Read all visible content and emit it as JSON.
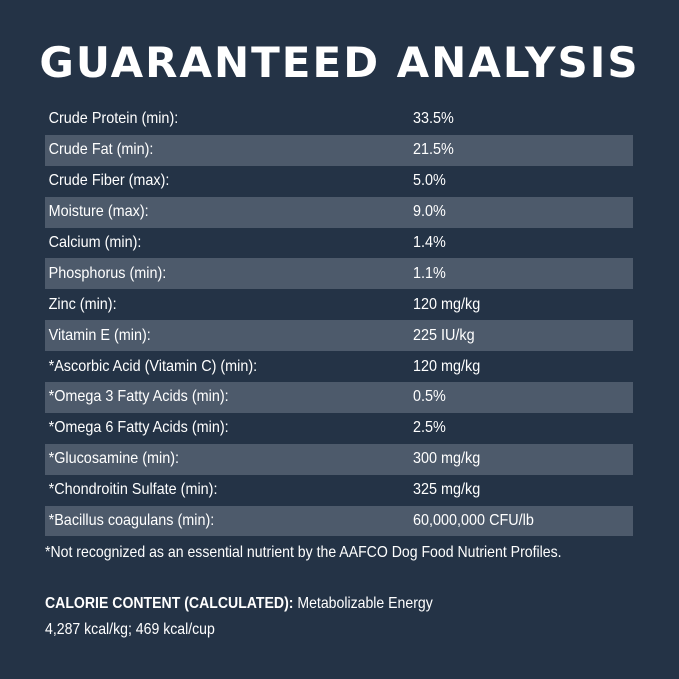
{
  "title": "GUARANTEED ANALYSIS",
  "rows": [
    {
      "label": "Crude Protein (min):",
      "value": "33.5%"
    },
    {
      "label": "Crude Fat (min):",
      "value": "21.5%"
    },
    {
      "label": "Crude Fiber (max):",
      "value": "5.0%"
    },
    {
      "label": "Moisture (max):",
      "value": "9.0%"
    },
    {
      "label": "Calcium (min):",
      "value": "1.4%"
    },
    {
      "label": "Phosphorus (min):",
      "value": "1.1%"
    },
    {
      "label": "Zinc (min):",
      "value": "120 mg/kg"
    },
    {
      "label": "Vitamin E (min):",
      "value": "225 IU/kg"
    },
    {
      "label": "*Ascorbic Acid (Vitamin C) (min):",
      "value": "120 mg/kg"
    },
    {
      "label": "*Omega 3 Fatty Acids (min):",
      "value": "0.5%"
    },
    {
      "label": "*Omega 6 Fatty Acids (min):",
      "value": "2.5%"
    },
    {
      "label": "*Glucosamine (min):",
      "value": "300 mg/kg"
    },
    {
      "label": "*Chondroitin Sulfate (min):",
      "value": "325 mg/kg"
    },
    {
      "label": "*Bacillus coagulans (min):",
      "value": "60,000,000 CFU/lb"
    }
  ],
  "footnote": "*Not recognized as an essential nutrient by the AAFCO Dog Food Nutrient Profiles.",
  "calorie": {
    "heading": "CALORIE CONTENT (CALCULATED):",
    "text": " Metabolizable Energy",
    "line2": "4,287 kcal/kg; 469 kcal/cup"
  },
  "colors": {
    "background": "#243346",
    "stripe": "#4d5a6b",
    "text": "#ffffff"
  }
}
